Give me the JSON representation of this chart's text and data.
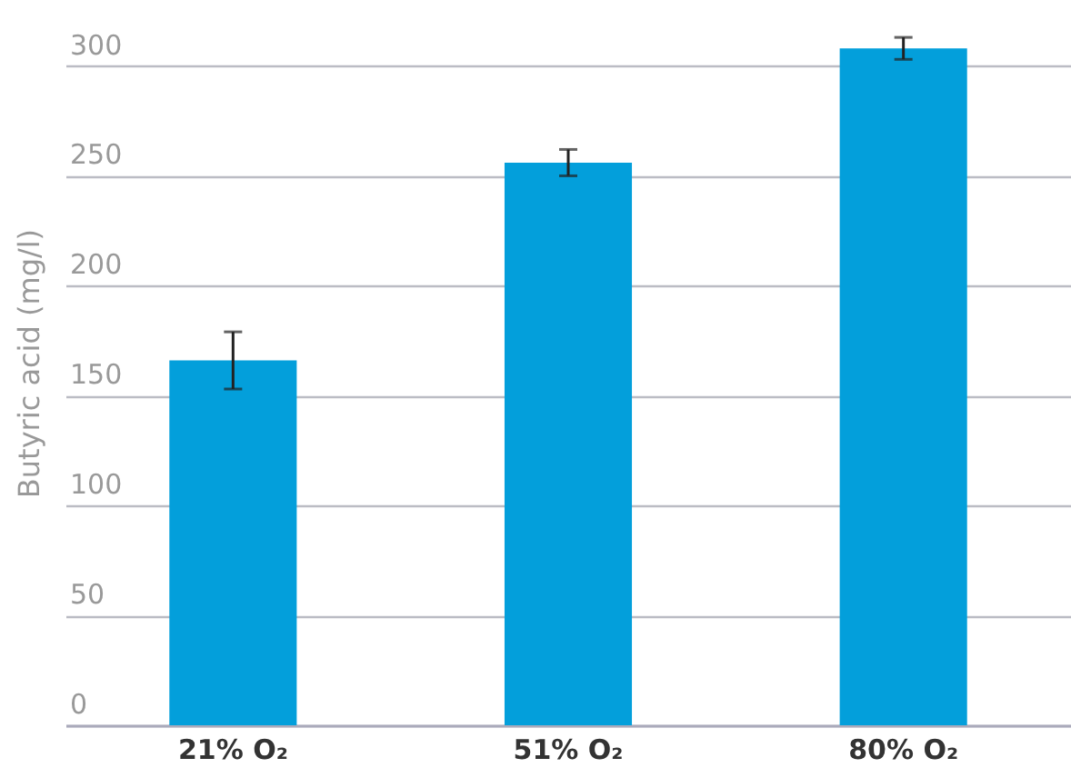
{
  "chart_data": {
    "type": "bar",
    "ylabel": "Butyric acid (mg/l)",
    "categories": [
      "21% O₂",
      "51% O₂",
      "80% O₂"
    ],
    "values": [
      166,
      256,
      308
    ],
    "errors": [
      13,
      6,
      5
    ],
    "color": "#039fdb",
    "ylim": [
      0,
      330
    ],
    "yticks": [
      0,
      50,
      100,
      150,
      200,
      250,
      300
    ],
    "grid": "y"
  }
}
